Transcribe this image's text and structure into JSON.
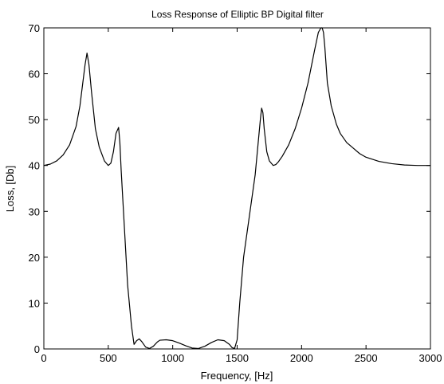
{
  "chart_data": {
    "type": "line",
    "title": "Loss Response of Elliptic BP Digital filter",
    "xlabel": "Frequency, [Hz]",
    "ylabel": "Loss, [Db]",
    "xlim": [
      0,
      3000
    ],
    "ylim": [
      0,
      70
    ],
    "xticks": [
      0,
      500,
      1000,
      1500,
      2000,
      2500,
      3000
    ],
    "yticks": [
      0,
      10,
      20,
      30,
      40,
      50,
      60,
      70
    ],
    "grid": false,
    "line_color": "#000000",
    "series": [
      {
        "x": [
          0,
          50,
          100,
          150,
          200,
          250,
          280,
          300,
          320,
          335,
          350,
          370,
          400,
          430,
          470,
          500,
          520,
          540,
          560,
          580,
          590,
          600,
          620,
          650,
          680,
          700,
          720,
          740,
          760,
          790,
          820,
          850,
          880,
          900,
          950,
          1000,
          1050,
          1100,
          1150,
          1200,
          1250,
          1300,
          1350,
          1400,
          1440,
          1460,
          1480,
          1500,
          1520,
          1550,
          1600,
          1640,
          1660,
          1680,
          1690,
          1700,
          1710,
          1730,
          1750,
          1780,
          1800,
          1820,
          1850,
          1900,
          1950,
          2000,
          2050,
          2100,
          2130,
          2150,
          2160,
          2170,
          2180,
          2190,
          2200,
          2230,
          2270,
          2300,
          2350,
          2400,
          2450,
          2500,
          2600,
          2700,
          2800,
          2900,
          3000
        ],
        "y": [
          40,
          40.3,
          41,
          42.3,
          44.5,
          48.5,
          53,
          57.5,
          62,
          64.5,
          62,
          56,
          48,
          44,
          41,
          40,
          40.5,
          43,
          47,
          48.3,
          45,
          39,
          29,
          14,
          5,
          1,
          1.8,
          2.2,
          1.6,
          0.4,
          0.1,
          0.6,
          1.5,
          1.9,
          2,
          1.8,
          1.3,
          0.7,
          0.2,
          0.1,
          0.6,
          1.4,
          2,
          1.8,
          1,
          0.3,
          0.1,
          2,
          10,
          20,
          30,
          38,
          44,
          50,
          52.5,
          51.5,
          48,
          43,
          41,
          40,
          40.2,
          40.8,
          42,
          44.5,
          48,
          52.5,
          58,
          65,
          69,
          70,
          70,
          69,
          66,
          62,
          58,
          53,
          49,
          47,
          45,
          43.8,
          42.6,
          41.8,
          40.9,
          40.4,
          40.1,
          40,
          40
        ]
      }
    ]
  }
}
